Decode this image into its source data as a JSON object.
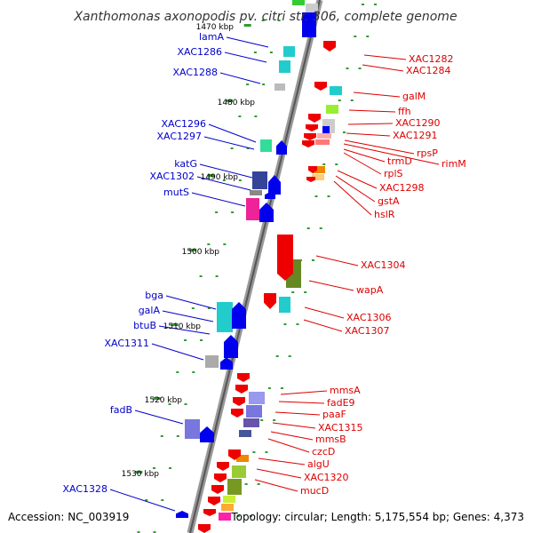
{
  "title": "Xanthomonas axonopodis pv. citri str. 306, complete genome",
  "accession": "Accession: NC_003919",
  "summary": "Topology: circular; Length: 5,175,554 bp; Genes: 4,373",
  "colors": {
    "left": "#0000cc",
    "right": "#dd0000",
    "tick": "#339933",
    "backbone": "#888888"
  },
  "ticks": [
    "1470 kbp",
    "1480 kbp",
    "1490 kbp",
    "1500 kbp",
    "1510 kbp",
    "1520 kbp",
    "1530 kbp"
  ],
  "left_genes": [
    "lamA",
    "XAC1286",
    "XAC1288",
    "XAC1296",
    "XAC1297",
    "katG",
    "XAC1302",
    "mutS",
    "bga",
    "galA",
    "btuB",
    "XAC1311",
    "fadB",
    "XAC1328"
  ],
  "right_genes": [
    "XAC1282",
    "XAC1284",
    "galM",
    "ffh",
    "XAC1290",
    "XAC1291",
    "rpsP",
    "rimM",
    "trmD",
    "rplS",
    "XAC1298",
    "gstA",
    "hslR",
    "XAC1304",
    "wapA",
    "XAC1306",
    "XAC1307",
    "mmsA",
    "fadE9",
    "paaF",
    "XAC1315",
    "mmsB",
    "czcD",
    "algU",
    "XAC1320",
    "mucD"
  ]
}
